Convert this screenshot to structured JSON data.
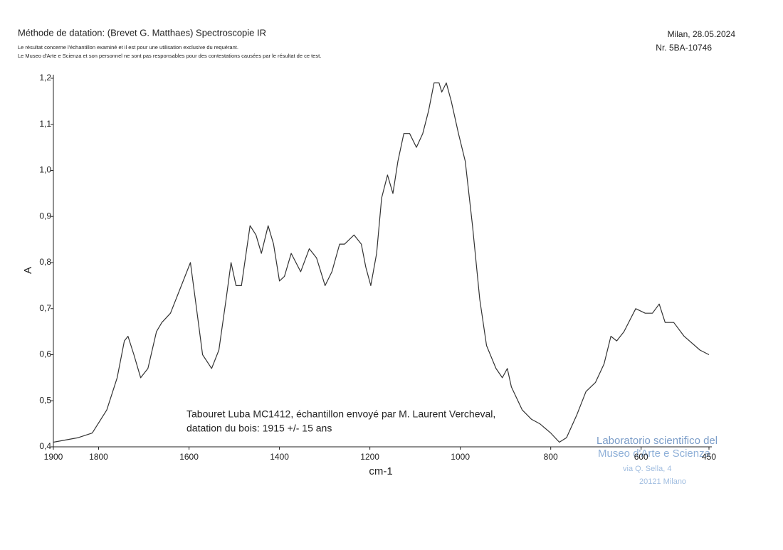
{
  "header": {
    "title": "Méthode de datation: (Brevet G. Matthaes) Spectroscopie IR",
    "notes": [
      "Le résultat concerne l'échantillon examiné et il est pour une utilisation exclusive du requérant.",
      "Le Museo d'Arte e Scienza et son personnel ne sont pas responsables pour des contestations causées par le résultat de ce test."
    ],
    "place_date": "Milan, 28.05.2024",
    "number": "Nr. 5BA-10746"
  },
  "stamp": [
    "Laboratorio scientifico del",
    "Museo d'Arte e Scienza",
    "via Q. Sella, 4",
    "20121 Milano"
  ],
  "chart_data": {
    "type": "line",
    "ylabel": "A",
    "xlabel": "cm-1",
    "annotations": [
      "Tabouret Luba MC1412, échantillon envoyé par M. Laurent Vercheval,",
      "datation du bois: 1915 +/- 15 ans"
    ],
    "color": "#333333",
    "xlim": [
      1900,
      450
    ],
    "ylim": [
      0.4,
      1.2
    ],
    "xticks": [
      1900,
      1800,
      1600,
      1400,
      1200,
      1000,
      800,
      600,
      450
    ],
    "yticks": [
      {
        "value": 0.4,
        "label": "0,4"
      },
      {
        "value": 0.5,
        "label": "0,5"
      },
      {
        "value": 0.6,
        "label": "0,6"
      },
      {
        "value": 0.7,
        "label": "0,7"
      },
      {
        "value": 0.8,
        "label": "0,8"
      },
      {
        "value": 0.9,
        "label": "0,9"
      },
      {
        "value": 1.0,
        "label": "1,0"
      },
      {
        "value": 1.1,
        "label": "1,1"
      },
      {
        "value": 1.2,
        "label": "1,2"
      }
    ],
    "grid": false,
    "x": [
      1900,
      1845,
      1814,
      1782,
      1759,
      1743,
      1735,
      1722,
      1707,
      1691,
      1672,
      1660,
      1641,
      1617,
      1597,
      1586,
      1570,
      1550,
      1534,
      1518,
      1507,
      1496,
      1484,
      1465,
      1452,
      1440,
      1425,
      1413,
      1400,
      1389,
      1374,
      1353,
      1334,
      1318,
      1299,
      1284,
      1267,
      1256,
      1235,
      1219,
      1209,
      1198,
      1185,
      1174,
      1161,
      1149,
      1138,
      1125,
      1112,
      1097,
      1083,
      1070,
      1058,
      1047,
      1041,
      1031,
      1020,
      1004,
      989,
      973,
      957,
      942,
      921,
      907,
      896,
      887,
      863,
      843,
      824,
      800,
      781,
      765,
      742,
      722,
      701,
      682,
      667,
      654,
      638,
      612,
      591,
      575,
      560,
      547,
      528,
      505,
      470,
      450
    ],
    "values": [
      0.41,
      0.42,
      0.43,
      0.48,
      0.55,
      0.63,
      0.64,
      0.6,
      0.55,
      0.57,
      0.65,
      0.67,
      0.69,
      0.75,
      0.8,
      0.72,
      0.6,
      0.57,
      0.61,
      0.72,
      0.8,
      0.75,
      0.75,
      0.88,
      0.86,
      0.82,
      0.88,
      0.84,
      0.76,
      0.77,
      0.82,
      0.78,
      0.83,
      0.81,
      0.75,
      0.78,
      0.84,
      0.84,
      0.86,
      0.84,
      0.79,
      0.75,
      0.82,
      0.94,
      0.99,
      0.95,
      1.02,
      1.08,
      1.08,
      1.05,
      1.08,
      1.13,
      1.19,
      1.19,
      1.17,
      1.19,
      1.15,
      1.08,
      1.02,
      0.88,
      0.72,
      0.62,
      0.57,
      0.55,
      0.57,
      0.53,
      0.48,
      0.46,
      0.45,
      0.43,
      0.41,
      0.42,
      0.47,
      0.52,
      0.54,
      0.58,
      0.64,
      0.63,
      0.65,
      0.7,
      0.69,
      0.69,
      0.71,
      0.67,
      0.67,
      0.64,
      0.61,
      0.6
    ]
  }
}
